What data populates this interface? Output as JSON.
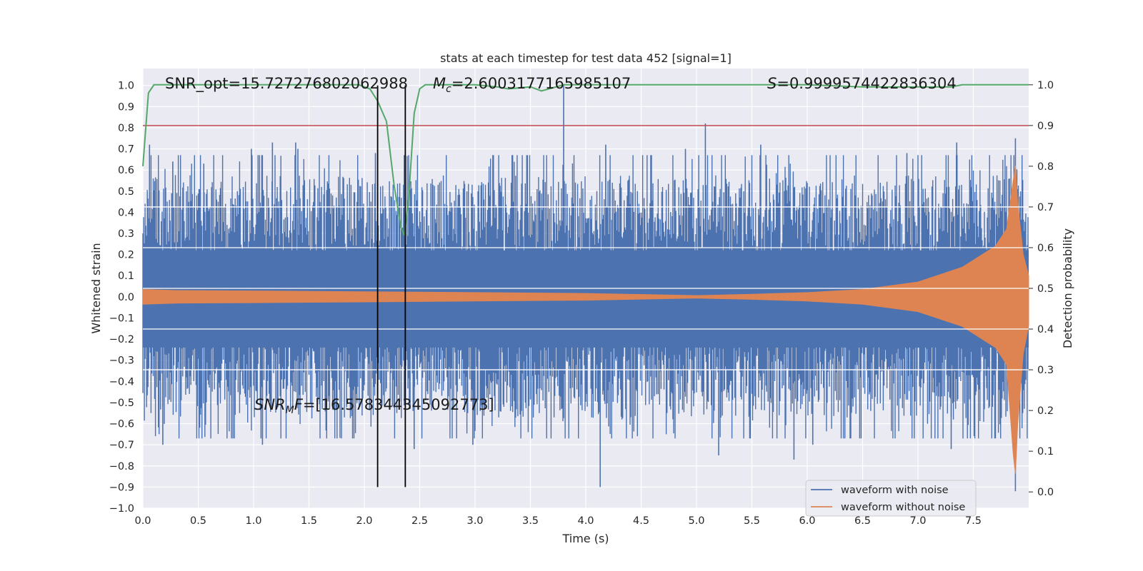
{
  "chart_data": {
    "type": "line",
    "title": "stats at each timestep for test data 452 [signal=1]",
    "xlabel": "Time (s)",
    "ylabel": "Whitened strain",
    "y2label": "Detection probability",
    "xlim": [
      0.0,
      8.0
    ],
    "ylim": [
      -1.0,
      1.08
    ],
    "y2lim": [
      -0.04,
      1.04
    ],
    "x_ticks": [
      0.0,
      0.5,
      1.0,
      1.5,
      2.0,
      2.5,
      3.0,
      3.5,
      4.0,
      4.5,
      5.0,
      5.5,
      6.0,
      6.5,
      7.0,
      7.5
    ],
    "x_tick_labels": [
      "0.0",
      "0.5",
      "1.0",
      "1.5",
      "2.0",
      "2.5",
      "3.0",
      "3.5",
      "4.0",
      "4.5",
      "5.0",
      "5.5",
      "6.0",
      "6.5",
      "7.0",
      "7.5"
    ],
    "y_ticks": [
      -1.0,
      -0.9,
      -0.8,
      -0.7,
      -0.6,
      -0.5,
      -0.4,
      -0.3,
      -0.2,
      -0.1,
      0.0,
      0.1,
      0.2,
      0.3,
      0.4,
      0.5,
      0.6,
      0.7,
      0.8,
      0.9,
      1.0
    ],
    "y_tick_labels": [
      "−1.0",
      "−0.9",
      "−0.8",
      "−0.7",
      "−0.6",
      "−0.5",
      "−0.4",
      "−0.3",
      "−0.2",
      "−0.1",
      "0.0",
      "0.1",
      "0.2",
      "0.3",
      "0.4",
      "0.5",
      "0.6",
      "0.7",
      "0.8",
      "0.9",
      "1.0"
    ],
    "y2_ticks": [
      0.0,
      0.1,
      0.2,
      0.3,
      0.4,
      0.5,
      0.6,
      0.7,
      0.8,
      0.9,
      1.0
    ],
    "y2_tick_labels": [
      "0.0",
      "0.1",
      "0.2",
      "0.3",
      "0.4",
      "0.5",
      "0.6",
      "0.7",
      "0.8",
      "0.9",
      "1.0"
    ],
    "grid": true,
    "legend_position": "bottom-right",
    "series": [
      {
        "name": "waveform with noise",
        "color": "#4c72b0",
        "axis": "left",
        "description_values": {
          "typical_abs_max": 0.45,
          "peak_max": 1.0,
          "peak_min": -0.92
        },
        "spikes_upper": [
          [
            0.06,
            0.72
          ],
          [
            0.27,
            0.64
          ],
          [
            0.55,
            0.63
          ],
          [
            0.98,
            0.7
          ],
          [
            1.17,
            0.73
          ],
          [
            1.38,
            0.73
          ],
          [
            1.4,
            0.7
          ],
          [
            2.1,
            0.68
          ],
          [
            3.8,
            1.0
          ],
          [
            4.18,
            0.72
          ],
          [
            4.9,
            0.7
          ],
          [
            5.08,
            0.82
          ],
          [
            5.58,
            0.72
          ],
          [
            6.9,
            0.68
          ],
          [
            7.35,
            0.73
          ],
          [
            7.88,
            0.75
          ]
        ],
        "spikes_lower": [
          [
            0.18,
            -0.7
          ],
          [
            1.08,
            -0.7
          ],
          [
            2.45,
            -0.72
          ],
          [
            2.98,
            -0.7
          ],
          [
            4.13,
            -0.9
          ],
          [
            5.2,
            -0.75
          ],
          [
            5.88,
            -0.77
          ],
          [
            6.05,
            -0.7
          ],
          [
            7.3,
            -0.72
          ],
          [
            7.88,
            -0.92
          ]
        ]
      },
      {
        "name": "waveform without noise",
        "color": "#dd8452",
        "axis": "left",
        "envelope": [
          [
            0.0,
            0.035
          ],
          [
            0.3,
            0.03
          ],
          [
            1.0,
            0.028
          ],
          [
            2.0,
            0.024
          ],
          [
            3.0,
            0.02
          ],
          [
            4.0,
            0.016
          ],
          [
            5.0,
            0.006
          ],
          [
            5.5,
            0.012
          ],
          [
            6.0,
            0.02
          ],
          [
            6.5,
            0.035
          ],
          [
            7.0,
            0.07
          ],
          [
            7.4,
            0.14
          ],
          [
            7.7,
            0.24
          ],
          [
            7.8,
            0.32
          ],
          [
            7.86,
            0.55
          ],
          [
            7.88,
            0.62
          ],
          [
            7.9,
            0.45
          ],
          [
            7.95,
            0.2
          ],
          [
            8.0,
            0.1
          ]
        ]
      },
      {
        "name": "detection probability",
        "color": "#55a868",
        "axis": "right",
        "points": [
          [
            0.0,
            0.8
          ],
          [
            0.05,
            0.98
          ],
          [
            0.1,
            1.0
          ],
          [
            0.5,
            1.0
          ],
          [
            1.0,
            1.0
          ],
          [
            1.5,
            1.0
          ],
          [
            1.95,
            1.0
          ],
          [
            2.05,
            0.99
          ],
          [
            2.12,
            0.96
          ],
          [
            2.2,
            0.91
          ],
          [
            2.27,
            0.75
          ],
          [
            2.33,
            0.65
          ],
          [
            2.36,
            0.63
          ],
          [
            2.4,
            0.72
          ],
          [
            2.45,
            0.93
          ],
          [
            2.5,
            0.99
          ],
          [
            2.55,
            1.0
          ],
          [
            3.0,
            1.0
          ],
          [
            3.2,
            0.995
          ],
          [
            3.3,
            0.99
          ],
          [
            3.5,
            0.995
          ],
          [
            3.6,
            0.985
          ],
          [
            3.8,
            1.0
          ],
          [
            4.5,
            1.0
          ],
          [
            5.0,
            1.0
          ],
          [
            5.5,
            1.0
          ],
          [
            6.0,
            1.0
          ],
          [
            6.5,
            0.995
          ],
          [
            7.0,
            0.995
          ],
          [
            7.3,
            0.995
          ],
          [
            7.4,
            1.0
          ],
          [
            8.0,
            1.0
          ]
        ]
      }
    ],
    "threshold_line": {
      "axis": "right",
      "value": 0.9,
      "color": "#c44e52"
    },
    "vertical_lines": [
      2.12,
      2.37
    ],
    "vertical_lines_range": [
      -0.9,
      1.0
    ],
    "annotations": [
      {
        "text": "SNR_opt=15.727276802062988"
      },
      {
        "math_symbol": "M",
        "math_sub": "c",
        "text": "=2.6003177165985107"
      },
      {
        "math_symbol": "S",
        "text": "=0.9999574422836304"
      },
      {
        "math_symbol": "SNR",
        "math_sub": "M",
        "math_after_sub": "F",
        "text": "=[16.578344345092773]"
      }
    ],
    "legend": [
      {
        "label": "waveform with noise",
        "color": "#4c72b0"
      },
      {
        "label": "waveform without noise",
        "color": "#dd8452"
      }
    ]
  }
}
